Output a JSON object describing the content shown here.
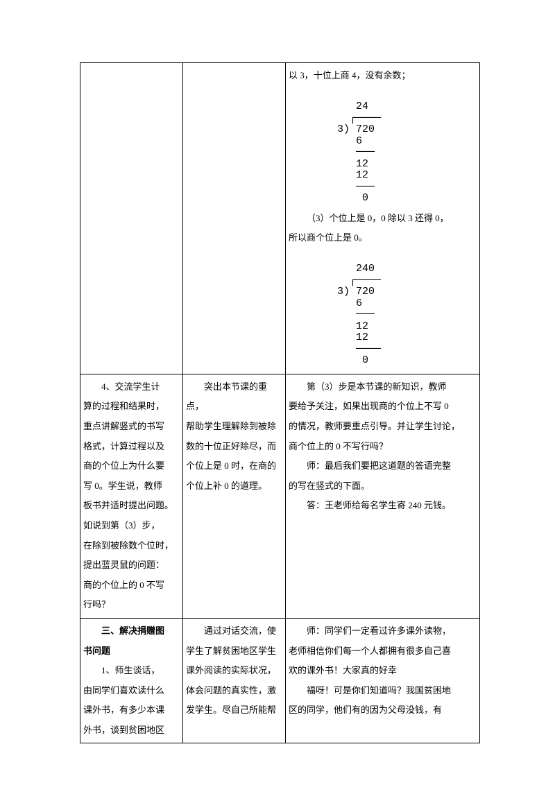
{
  "row1": {
    "col3": {
      "line1": "以 3，十位上商 4，没有余数；",
      "div1": {
        "quotient": "   24",
        "divisor_dividend": "3) 720",
        "r1": "   6",
        "r2": "   12",
        "r3": "   12",
        "r4": "    0"
      },
      "line2": "（3）个位上是 0，0 除以 3 还得 0，",
      "line3": "所以商个位上是 0。",
      "div2": {
        "quotient": "   240",
        "divisor_dividend": "3) 720",
        "r1": "   6",
        "r2": "   12",
        "r3": "   12",
        "r4": "    0"
      }
    }
  },
  "row2": {
    "col1": {
      "p1": "4、交流学生计",
      "p2": "算的过程和结果时，",
      "p3": "重点讲解竖式的书写",
      "p4": "格式，计算过程以及",
      "p5": "商的个位上为什么要",
      "p6": "写 0。学生说，教师",
      "p7": "板书并适时提出问题。",
      "p8": "如说到第（3）步，",
      "p9": "在除到被除数个位时，",
      "p10": "提出蓝灵鼠的问题：",
      "p11": "商的个位上的 0 不写",
      "p12": "行吗？"
    },
    "col2": {
      "p1": "突出本节课的重点，",
      "p2": "帮助学生理解除到被除",
      "p3": "数的十位正好除尽，而",
      "p4": "个位上是 0 时，在商的",
      "p5": "个位上补 0 的道理。"
    },
    "col3": {
      "p1": "第（3）步是本节课的新知识，教师",
      "p2": "要给予关注，如果出现商的个位上不写 0",
      "p3": "的情况，教师要重点引导。并让学生讨论，",
      "p4": "商个位上的 0 不写行吗？",
      "p5": "师：最后我们要把这道题的答语完整",
      "p6": "的写在竖式的下面。",
      "p7": "答：王老师给每名学生寄 240 元钱。"
    }
  },
  "row3": {
    "col1": {
      "h1": "三、解决捐赠图",
      "h2": "书问题",
      "p1": "1、师生谈话，",
      "p2": "由同学们喜欢读什么",
      "p3": "课外书，有多少本课",
      "p4": "外书，谈到贫困地区"
    },
    "col2": {
      "p1": "通过对话交流，使",
      "p2": "学生了解贫困地区学生",
      "p3": "课外阅读的实际状况，",
      "p4": "体会问题的真实性，激",
      "p5": "发学生。尽自己所能帮"
    },
    "col3": {
      "p1": "师：同学们一定看过许多课外读物，",
      "p2": "老师相信你们每一个人都拥有很多自己喜",
      "p3": "欢的课外书！大家真的好幸",
      "p4": "福呀！可是你们知道吗？我国贫困地",
      "p5": "区的同学，他们有的因为父母没钱，有"
    }
  }
}
